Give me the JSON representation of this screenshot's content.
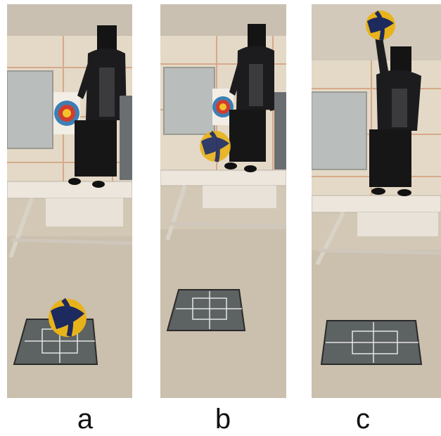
{
  "panels": [
    {
      "id": "a",
      "label": "a",
      "ball": "on-floor"
    },
    {
      "id": "b",
      "label": "b",
      "ball": "in-air"
    },
    {
      "id": "c",
      "label": "c",
      "ball": "held-overhead"
    }
  ],
  "colors": {
    "background": "#ffffff",
    "wall": "#e4d9c7",
    "floor": "#d3c8b6",
    "ball_yellow": "#e8b31a",
    "ball_navy": "#1d2a5e",
    "clothing": "#1c1c1e"
  }
}
